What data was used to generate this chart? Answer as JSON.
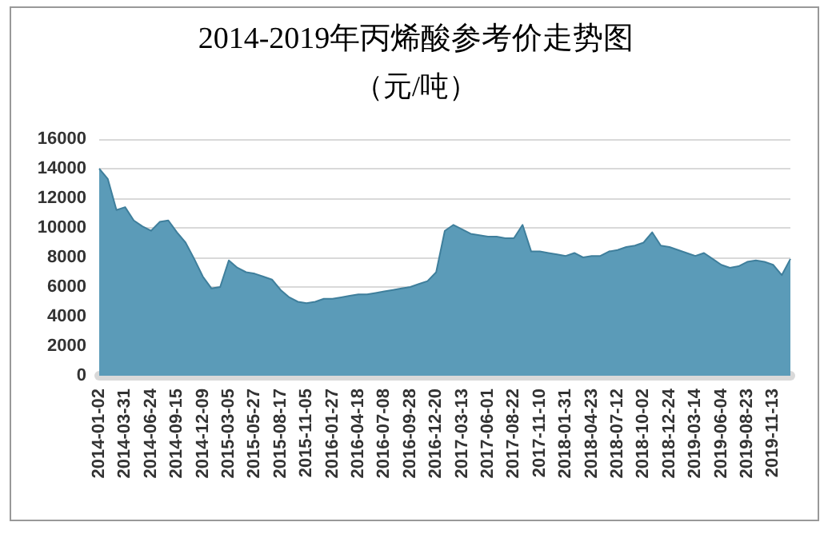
{
  "chart_data": {
    "type": "area",
    "title": "2014-2019年丙烯酸参考价走势图",
    "subtitle": "（元/吨）",
    "categories": [
      "2014-01-02",
      null,
      null,
      "2014-03-31",
      null,
      null,
      "2014-06-24",
      null,
      null,
      "2014-09-15",
      null,
      null,
      "2014-12-09",
      null,
      null,
      "2015-03-05",
      null,
      null,
      "2015-05-27",
      null,
      null,
      "2015-08-17",
      null,
      null,
      "2015-11-05",
      null,
      null,
      "2016-01-27",
      null,
      null,
      "2016-04-18",
      null,
      null,
      "2016-07-08",
      null,
      null,
      "2016-09-28",
      null,
      null,
      "2016-12-20",
      null,
      null,
      "2017-03-13",
      null,
      null,
      "2017-06-01",
      null,
      null,
      "2017-08-22",
      null,
      null,
      "2017-11-10",
      null,
      null,
      "2018-01-31",
      null,
      null,
      "2018-04-23",
      null,
      null,
      "2018-07-12",
      null,
      null,
      "2018-10-02",
      null,
      null,
      "2018-12-24",
      null,
      null,
      "2019-03-14",
      null,
      null,
      "2019-06-04",
      null,
      null,
      "2019-08-23",
      null,
      null,
      "2019-11-13",
      null,
      null
    ],
    "series": [
      {
        "color": "#5b9bb8",
        "values": [
          14000,
          13300,
          11200,
          11400,
          10500,
          10100,
          9800,
          10400,
          10500,
          9700,
          9000,
          7900,
          6700,
          5900,
          6000,
          7800,
          7300,
          7000,
          6900,
          6700,
          6500,
          5800,
          5300,
          5000,
          4900,
          5000,
          5200,
          5200,
          5300,
          5400,
          5500,
          5500,
          5600,
          5700,
          5800,
          5900,
          6000,
          6200,
          6400,
          7000,
          9800,
          10200,
          9900,
          9600,
          9500,
          9400,
          9400,
          9300,
          9300,
          10200,
          8400,
          8400,
          8300,
          8200,
          8100,
          8300,
          8000,
          8100,
          8100,
          8400,
          8500,
          8700,
          8800,
          9000,
          9700,
          8800,
          8700,
          8500,
          8300,
          8100,
          8300,
          7900,
          7500,
          7300,
          7400,
          7700,
          7800,
          7700,
          7500,
          6800,
          7900
        ]
      }
    ],
    "ylim": [
      0,
      16000
    ],
    "yticks": [
      0,
      2000,
      4000,
      6000,
      8000,
      10000,
      12000,
      14000,
      16000
    ],
    "grid": "y"
  }
}
